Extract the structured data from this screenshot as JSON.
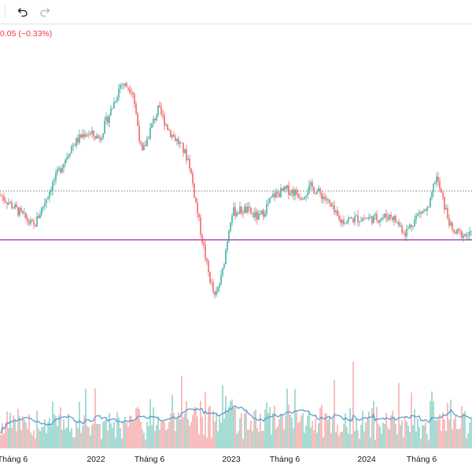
{
  "toolbar": {
    "undo_icon": "undo-icon",
    "redo_icon": "redo-icon"
  },
  "change_text": "0.05 (−0.33%)",
  "colors": {
    "up": "#26a69a",
    "down": "#ef5350",
    "volume_up": "#7fcdc2",
    "volume_down": "#f4a3a3",
    "volume_ma": "#5b9bd5",
    "ref_line": "#9c27b0",
    "last_price_line": "#787b86",
    "axis_text": "#131722",
    "change_text": "#f23645"
  },
  "x_axis_labels": [
    "Tháng 6",
    "2022",
    "Tháng 6",
    "2023",
    "Tháng 6",
    "2024",
    "Tháng 6"
  ],
  "chart_data": {
    "type": "candlestick",
    "price_anchors": [
      [
        0,
        0.58
      ],
      [
        0.04,
        0.52
      ],
      [
        0.07,
        0.47
      ],
      [
        0.11,
        0.62
      ],
      [
        0.15,
        0.75
      ],
      [
        0.18,
        0.8
      ],
      [
        0.21,
        0.78
      ],
      [
        0.24,
        0.9
      ],
      [
        0.255,
        0.97
      ],
      [
        0.28,
        0.95
      ],
      [
        0.3,
        0.72
      ],
      [
        0.32,
        0.82
      ],
      [
        0.335,
        0.88
      ],
      [
        0.36,
        0.8
      ],
      [
        0.38,
        0.76
      ],
      [
        0.4,
        0.7
      ],
      [
        0.42,
        0.5
      ],
      [
        0.44,
        0.32
      ],
      [
        0.455,
        0.22
      ],
      [
        0.47,
        0.3
      ],
      [
        0.49,
        0.52
      ],
      [
        0.52,
        0.53
      ],
      [
        0.55,
        0.5
      ],
      [
        0.58,
        0.58
      ],
      [
        0.61,
        0.6
      ],
      [
        0.64,
        0.58
      ],
      [
        0.66,
        0.61
      ],
      [
        0.69,
        0.57
      ],
      [
        0.72,
        0.49
      ],
      [
        0.76,
        0.5
      ],
      [
        0.8,
        0.5
      ],
      [
        0.83,
        0.51
      ],
      [
        0.86,
        0.45
      ],
      [
        0.89,
        0.52
      ],
      [
        0.91,
        0.53
      ],
      [
        0.925,
        0.65
      ],
      [
        0.94,
        0.56
      ],
      [
        0.96,
        0.45
      ],
      [
        1.0,
        0.44
      ]
    ],
    "last_price_level": 0.595,
    "reference_level": 0.425
  }
}
